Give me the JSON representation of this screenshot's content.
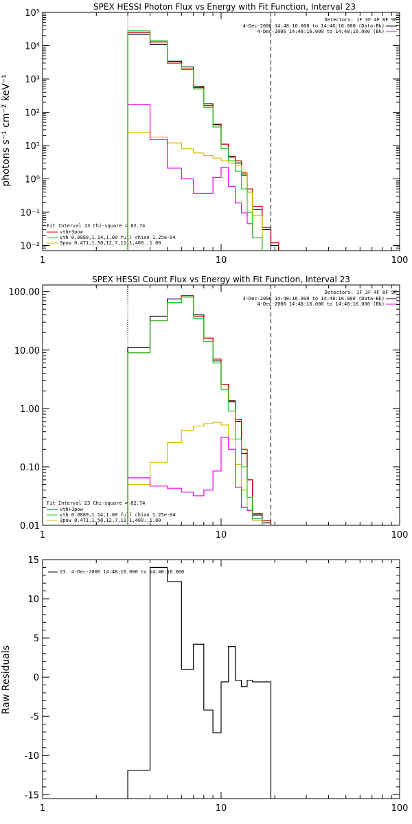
{
  "colors": {
    "data": "#000000",
    "vth_plus_3pow": "#cc0000",
    "vth": "#22cc22",
    "bpow": "#ddbb00",
    "bk": "#ee00ee",
    "dotted_line": "#000000",
    "dashed_line": "#000000"
  },
  "chart_data": [
    {
      "type": "line",
      "title": "SPEX HESSI Photon Flux vs Energy with Fit Function, Interval 23",
      "xlabel": "",
      "ylabel": "photons s⁻¹ cm⁻² keV⁻¹",
      "xscale": "log",
      "yscale": "log",
      "xlim": [
        1,
        100
      ],
      "ylim": [
        0.007,
        100000
      ],
      "x_tick_labels": [
        "1",
        "10",
        "100"
      ],
      "y_tick_labels": [
        "10⁻²",
        "10⁻¹",
        "10⁰",
        "10¹",
        "10²",
        "10³",
        "10⁴",
        "10⁵"
      ],
      "energy_edges_keV": [
        3,
        4,
        5,
        6,
        7,
        8,
        9,
        10,
        11,
        12,
        13,
        14,
        15,
        17,
        19,
        21
      ],
      "series": [
        {
          "name": "data",
          "color_key": "data",
          "values": [
            22000,
            11000,
            3400,
            2300,
            600,
            180,
            42,
            11,
            4.5,
            3,
            1.3,
            0.4,
            0.12,
            0.03,
            0.01
          ]
        },
        {
          "name": "vth+3pow",
          "color_key": "vth_plus_3pow",
          "values": [
            25000,
            13000,
            3000,
            2000,
            550,
            160,
            44,
            11,
            4.8,
            3.5,
            1.5,
            0.5,
            0.15,
            0.035,
            0.012
          ]
        },
        {
          "name": "vth",
          "color_key": "vth",
          "values": [
            28000,
            14000,
            2900,
            1900,
            500,
            140,
            36,
            8,
            3.5,
            1.7,
            0.5,
            0.1,
            0.017
          ]
        },
        {
          "name": "3pow",
          "color_key": "bpow",
          "values": [
            25,
            18,
            12,
            8,
            6,
            5,
            4.2,
            3.5,
            3,
            2.5,
            1.6,
            0.4,
            0.08
          ]
        },
        {
          "name": "bk",
          "color_key": "bk",
          "values": [
            170,
            15,
            2.1,
            1,
            0.37,
            0.37,
            1.1,
            2.2,
            0.6,
            0.19,
            0.095,
            0.045,
            0.017
          ]
        }
      ],
      "legend_top": {
        "detectors": "Detectors: 1F 3F 4F 8F 9F",
        "line1": "4-Dec-2006 14:48:16.000 to 14:48:16.000 (Data-Bk)",
        "line2": "4-Dec-2006 14:48:16.000 to 14:48:16.000 (Bk)"
      },
      "legend_bottom": {
        "header": "Fit Interval 23   Chi-square = 82.74",
        "items": [
          {
            "text": "vth+3pow",
            "color_key": "vth_plus_3pow"
          },
          {
            "text": "vth 0.0889,1.14,1.00  full chian 1.25e-04",
            "color_key": "vth"
          },
          {
            "text": "3pow 0.471,1.50,12.7,11.1,400.,1.00",
            "color_key": "bpow"
          }
        ]
      },
      "vlines": {
        "dotted": 3,
        "dashed": 19
      }
    },
    {
      "type": "line",
      "title": "SPEX HESSI Count Flux vs Energy with Fit Function, Interval 23",
      "xlabel": "",
      "ylabel": "",
      "xscale": "log",
      "yscale": "log",
      "xlim": [
        1,
        100
      ],
      "ylim": [
        0.01,
        130
      ],
      "x_tick_labels": [
        "1",
        "10",
        "100"
      ],
      "y_tick_labels": [
        "0.01",
        "0.10",
        "1.00",
        "10.00",
        "100.00"
      ],
      "energy_edges_keV": [
        3,
        4,
        5,
        6,
        7,
        8,
        9,
        10,
        11,
        12,
        13,
        14,
        15,
        17,
        19
      ],
      "series": [
        {
          "name": "data",
          "color_key": "data",
          "values": [
            11,
            38,
            75,
            85,
            40,
            16,
            6.5,
            2.6,
            1.35,
            0.6,
            0.17,
            0.06,
            0.015,
            0.011
          ]
        },
        {
          "name": "vth+3pow",
          "color_key": "vth_plus_3pow",
          "values": [
            9,
            32,
            65,
            85,
            38,
            16,
            7,
            2.6,
            1.3,
            0.65,
            0.2,
            0.06,
            0.016,
            0.012
          ]
        },
        {
          "name": "vth",
          "color_key": "vth",
          "values": [
            9,
            32,
            65,
            80,
            35,
            14,
            6,
            2.1,
            0.9,
            0.3,
            0.1,
            0.03,
            0.013
          ]
        },
        {
          "name": "3pow",
          "color_key": "bpow",
          "values": [
            0.05,
            0.12,
            0.26,
            0.42,
            0.5,
            0.55,
            0.58,
            0.52,
            0.3,
            0.11,
            0.04,
            0.018,
            0.012
          ]
        },
        {
          "name": "bk",
          "color_key": "bk",
          "values": [
            0.065,
            0.047,
            0.043,
            0.037,
            0.032,
            0.04,
            0.085,
            0.32,
            0.2,
            0.045,
            0.02,
            0.018,
            0.013
          ]
        }
      ],
      "legend_top": {
        "detectors": "Detectors: 1F 3F 4F 8F 9F",
        "line1": "4-Dec-2006 14:48:16.000 to 14:48:16.000 (Data-Bk)",
        "line2": "4-Dec-2006 14:48:16.000 to 14:48:16.000 (Bk)"
      },
      "legend_bottom": {
        "header": "Fit Interval 23   Chi-square = 82.74",
        "items": [
          {
            "text": "vth+3pow",
            "color_key": "vth_plus_3pow"
          },
          {
            "text": "vth 0.0889,1.14,1.00  full chian 1.25e-04",
            "color_key": "vth"
          },
          {
            "text": "3pow 0.471,1.50,12.7,11.1,400.,1.00",
            "color_key": "bpow"
          }
        ]
      },
      "vlines": {
        "dotted": 3,
        "dashed": 19
      }
    },
    {
      "type": "line",
      "title": "",
      "xlabel": "",
      "ylabel": "Raw Residuals",
      "xscale": "log",
      "yscale": "linear",
      "xlim": [
        1,
        100
      ],
      "ylim": [
        -15.5,
        15
      ],
      "x_tick_labels": [
        "1",
        "10",
        "100"
      ],
      "y_tick_labels": [
        "-15",
        "-10",
        "-5",
        "0",
        "5",
        "10",
        "15"
      ],
      "y_tick_values": [
        -15,
        -10,
        -5,
        0,
        5,
        10,
        15
      ],
      "energy_edges_keV": [
        3,
        4,
        4.5,
        5,
        6,
        7,
        8,
        9,
        10,
        11,
        12,
        13,
        14,
        15,
        17,
        19
      ],
      "series": [
        {
          "name": "residuals",
          "color_key": "data",
          "values": [
            -11.9,
            14,
            14,
            12.2,
            1,
            4.2,
            -4.2,
            -7.1,
            -0.6,
            3.9,
            -0.4,
            -1.2,
            -0.4,
            -0.6,
            -0.6
          ]
        }
      ],
      "legend": {
        "text": "23.  4-Dec-2006 14:48:16.000 to 14:48:16.000"
      }
    }
  ]
}
